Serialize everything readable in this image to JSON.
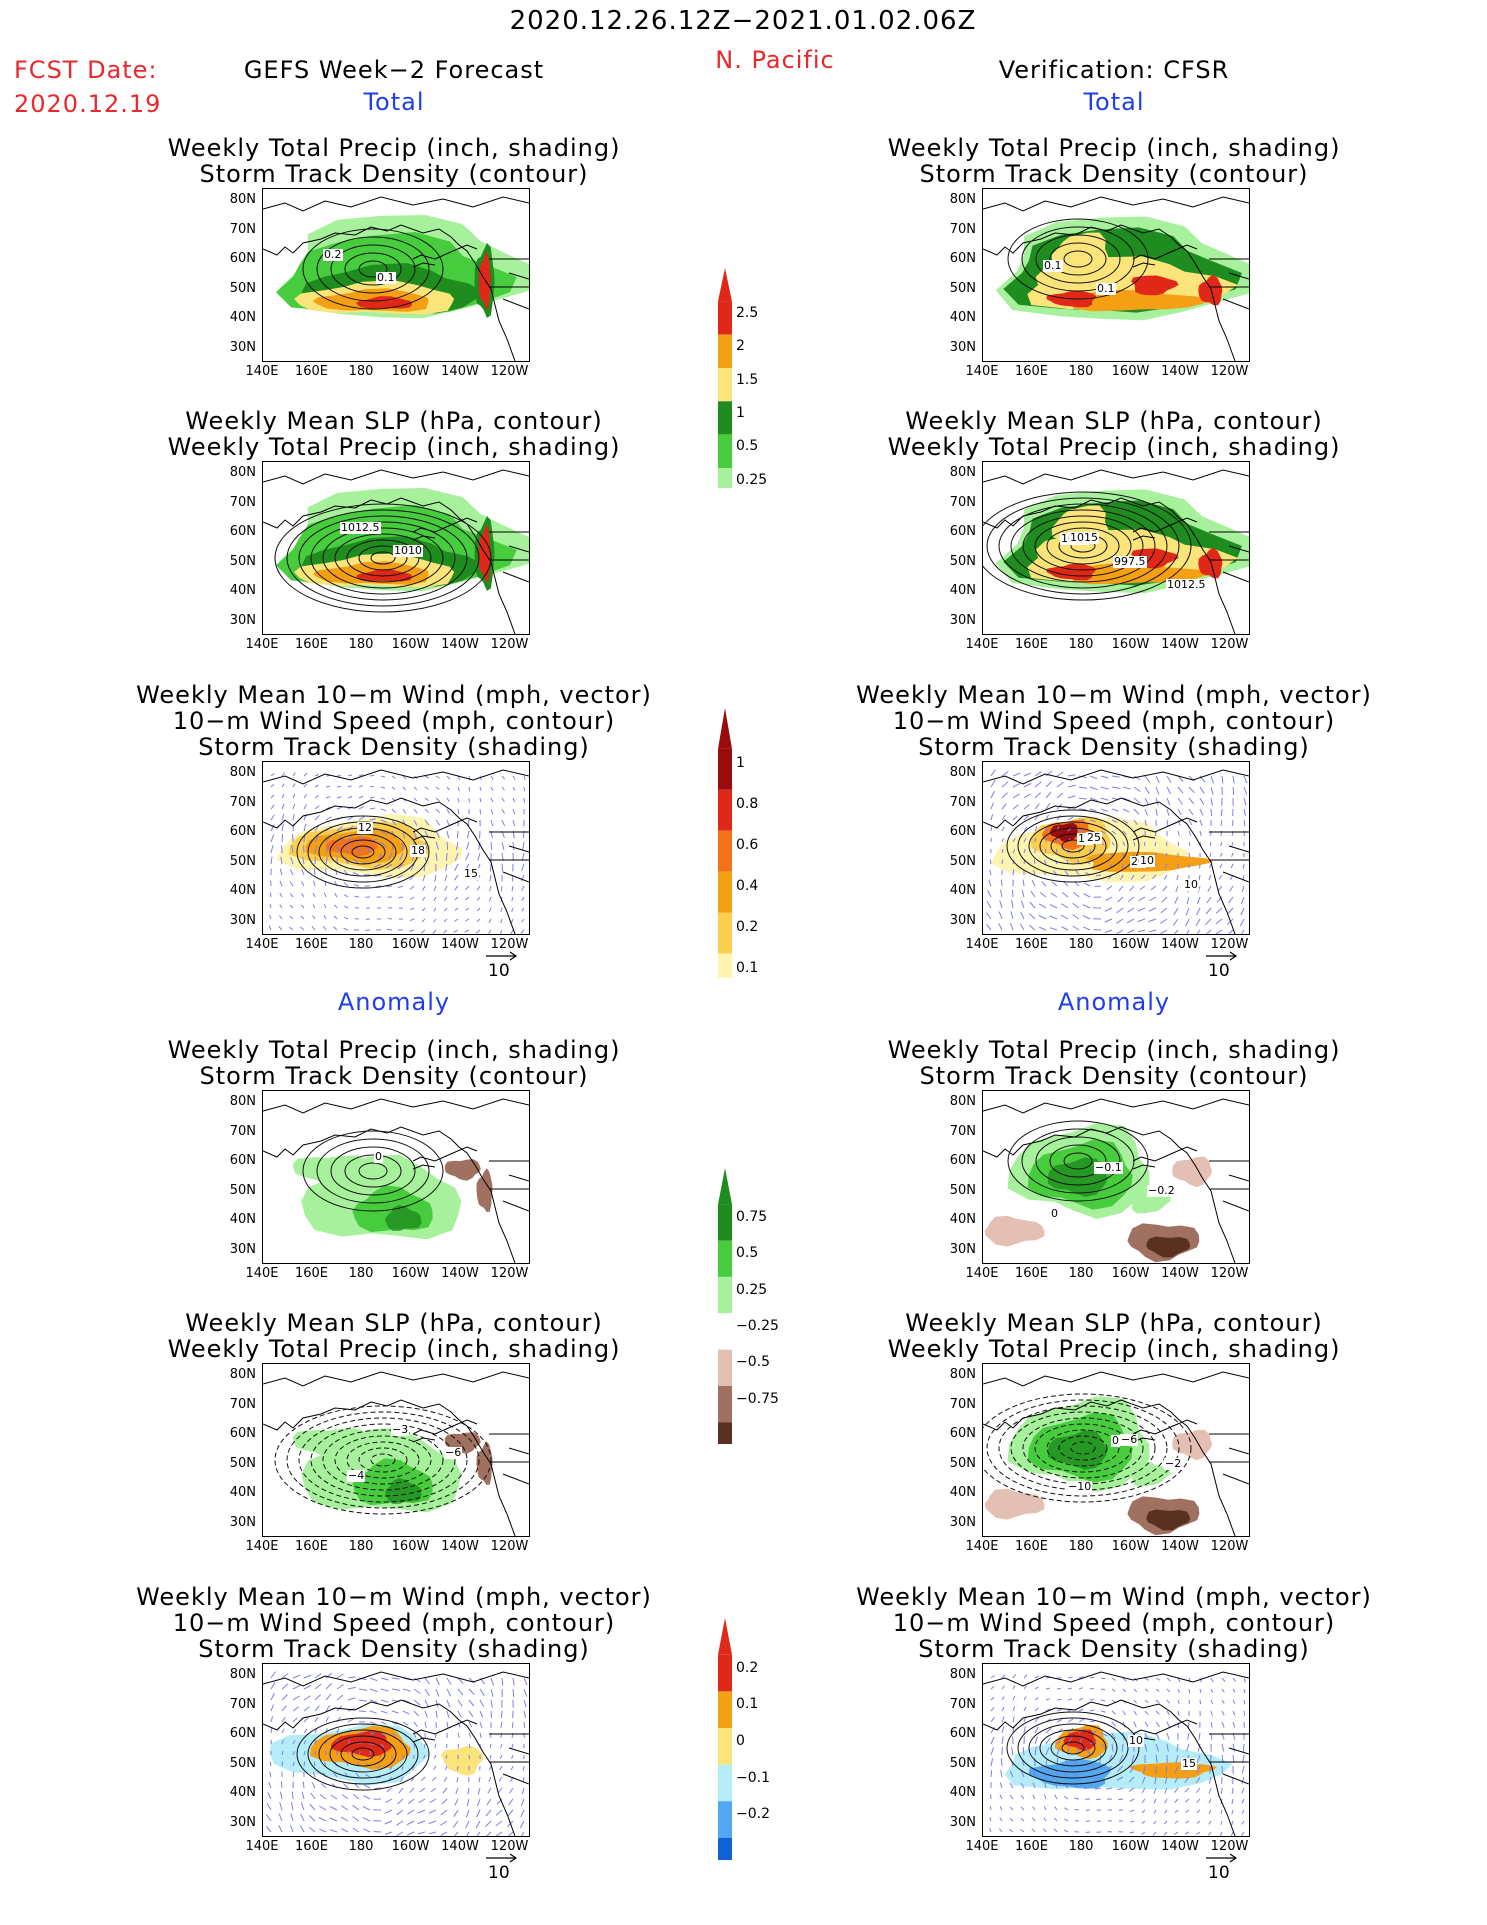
{
  "header": {
    "period": "2020.12.26.12Z−2021.01.02.06Z",
    "region": "N. Pacific",
    "fcst_label": "FCST Date:",
    "fcst_date": "2020.12.19",
    "left_title": "GEFS Week−2 Forecast",
    "right_title": "Verification: CFSR"
  },
  "sections": {
    "total": "Total",
    "anomaly": "Anomaly"
  },
  "axes": {
    "lat_ticks": [
      "80N",
      "70N",
      "60N",
      "50N",
      "40N",
      "30N"
    ],
    "lon_ticks": [
      "140E",
      "160E",
      "180",
      "160W",
      "140W",
      "120W"
    ]
  },
  "panel_titles": {
    "precip_storm": [
      "Weekly Total Precip (inch, shading)",
      "Storm Track Density (contour)"
    ],
    "slp_precip": [
      "Weekly Mean SLP (hPa, contour)",
      "Weekly Total Precip (inch, shading)"
    ],
    "wind_storm": [
      "Weekly Mean 10−m Wind (mph, vector)",
      "10−m Wind Speed (mph, contour)",
      "Storm Track Density (shading)"
    ]
  },
  "contour_labels": {
    "fc_precip_total": [
      "0.2",
      "0.1"
    ],
    "ob_precip_total": [
      "0.1",
      "0.1"
    ],
    "fc_slp_total": [
      "1012.5",
      "1010"
    ],
    "ob_slp_total": [
      "1015",
      "997.5",
      "1012.5",
      "1015"
    ],
    "fc_wind_total": [
      "12",
      "18",
      "15"
    ],
    "ob_wind_total": [
      "15",
      "20",
      "10",
      "25",
      "10"
    ],
    "fc_precip_anom": [
      "0"
    ],
    "ob_precip_anom": [
      "−0.1",
      "−0.2",
      "0"
    ],
    "fc_slp_anom": [
      "−3",
      "−6",
      "−4"
    ],
    "ob_slp_anom": [
      "0",
      "−2",
      "−10",
      "−6"
    ],
    "ob_wind_anom": [
      "10",
      "15"
    ]
  },
  "colorbars": [
    {
      "name": "precip-total",
      "labels": [
        "2.5",
        "2",
        "1.5",
        "1",
        "0.5",
        "0.25"
      ],
      "colors": [
        "#e02818",
        "#f5a014",
        "#fbe57a",
        "#1e8c1e",
        "#46cc3c",
        "#a7f09c"
      ]
    },
    {
      "name": "storm-total",
      "labels": [
        "1",
        "0.8",
        "0.6",
        "0.4",
        "0.2",
        "0.1"
      ],
      "colors": [
        "#9a0c0c",
        "#e02818",
        "#f57318",
        "#f5a014",
        "#fbce50",
        "#fdf4b0"
      ]
    },
    {
      "name": "precip-anom",
      "labels": [
        "0.75",
        "0.5",
        "0.25",
        "−0.25",
        "−0.5",
        "−0.75"
      ],
      "colors": [
        "#1e8c1e",
        "#46cc3c",
        "#a7f09c",
        "#ffffff",
        "#e4c0b4",
        "#a07060",
        "#5a3020"
      ]
    },
    {
      "name": "storm-anom",
      "labels": [
        "0.2",
        "0.1",
        "0",
        "−0.1",
        "−0.2"
      ],
      "colors": [
        "#e02818",
        "#f5a014",
        "#fbe57a",
        "#b4ecf8",
        "#52a8f0",
        "#1060d8"
      ]
    }
  ],
  "vector_scale": "10",
  "colors": {
    "title_red": "#e8282c",
    "section_blue": "#1f3cf0",
    "wind_vectors": "#7d7df0"
  }
}
